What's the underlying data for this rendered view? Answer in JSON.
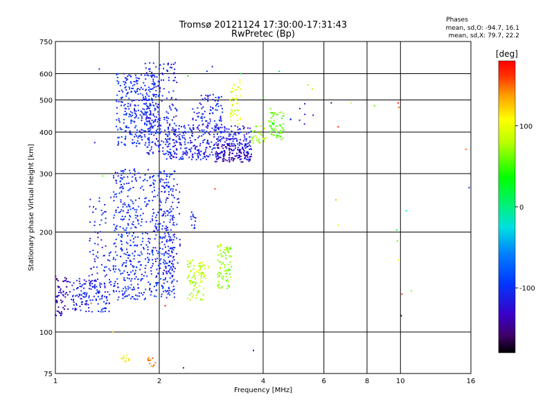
{
  "chart_data": {
    "type": "scatter",
    "title": "Tromsø 20121124 17:30:00-17:31:43",
    "subtitle": "RwPretec (Bp)",
    "xlabel": "Frequency [MHz]",
    "ylabel": "Stationary phase Virtual Height [km]",
    "x_scale": "log",
    "y_scale": "log",
    "xlim": [
      1,
      16
    ],
    "ylim": [
      75,
      750
    ],
    "x_ticks": [
      1,
      2,
      4,
      6,
      8,
      10,
      16
    ],
    "x_tick_labels": [
      "1",
      "2",
      "4",
      "6",
      "8",
      "10",
      "16"
    ],
    "y_ticks": [
      75,
      100,
      200,
      300,
      400,
      500,
      600,
      750
    ],
    "y_tick_labels": [
      "75",
      "100",
      "200",
      "300",
      "400",
      "500",
      "600",
      "750"
    ],
    "grid": true,
    "stats": {
      "heading": "Phases",
      "line1": "mean, sd,O:  -94.7, 16.1",
      "line2": "mean, sd,X:  79.7, 22.2"
    },
    "colorbar": {
      "unit": "[deg]",
      "range": [
        -180,
        180
      ],
      "ticks": [
        100,
        0,
        -100
      ],
      "tick_labels": [
        "100",
        "0",
        "-100"
      ]
    },
    "clusters": [
      {
        "f": [
          1.0,
          1.09
        ],
        "h": [
          112,
          148
        ],
        "phase": -135,
        "count": 60
      },
      {
        "f": [
          1.1,
          1.45
        ],
        "h": [
          115,
          145
        ],
        "phase": -112,
        "count": 140
      },
      {
        "f": [
          1.25,
          1.45
        ],
        "h": [
          140,
          255
        ],
        "phase": -108,
        "count": 70
      },
      {
        "f": [
          1.47,
          2.22
        ],
        "h": [
          125,
          310
        ],
        "phase": -102,
        "count": 620
      },
      {
        "f": [
          2.05,
          2.3
        ],
        "h": [
          140,
          280
        ],
        "phase": -115,
        "count": 80
      },
      {
        "f": [
          1.5,
          2.0
        ],
        "h": [
          360,
          600
        ],
        "phase": -102,
        "count": 330
      },
      {
        "f": [
          1.82,
          2.25
        ],
        "h": [
          340,
          650
        ],
        "phase": -110,
        "count": 200
      },
      {
        "f": [
          2.1,
          3.7
        ],
        "h": [
          330,
          420
        ],
        "phase": -112,
        "count": 380
      },
      {
        "f": [
          2.9,
          3.7
        ],
        "h": [
          325,
          370
        ],
        "phase": -140,
        "count": 90
      },
      {
        "f": [
          2.5,
          3.05
        ],
        "h": [
          400,
          520
        ],
        "phase": -108,
        "count": 90
      },
      {
        "f": [
          3.2,
          3.45
        ],
        "h": [
          420,
          580
        ],
        "phase": 90,
        "count": 40
      },
      {
        "f": [
          3.7,
          4.1
        ],
        "h": [
          370,
          420
        ],
        "phase": 72,
        "count": 30
      },
      {
        "f": [
          4.15,
          4.6
        ],
        "h": [
          380,
          460
        ],
        "phase": 58,
        "count": 60
      },
      {
        "f": [
          4.6,
          5.6
        ],
        "h": [
          420,
          490
        ],
        "phase": -120,
        "count": 8
      },
      {
        "f": [
          2.4,
          2.7
        ],
        "h": [
          125,
          165
        ],
        "phase": 78,
        "count": 70
      },
      {
        "f": [
          2.6,
          2.8
        ],
        "h": [
          140,
          165
        ],
        "phase": 95,
        "count": 20
      },
      {
        "f": [
          2.95,
          3.25
        ],
        "h": [
          135,
          185
        ],
        "phase": 68,
        "count": 80
      },
      {
        "f": [
          1.55,
          1.65
        ],
        "h": [
          80,
          86
        ],
        "phase": 112,
        "count": 12
      },
      {
        "f": [
          1.85,
          1.95
        ],
        "h": [
          78,
          84
        ],
        "phase": 145,
        "count": 12
      },
      {
        "f": [
          2.47,
          2.56
        ],
        "h": [
          205,
          230
        ],
        "phase": -105,
        "count": 15
      }
    ],
    "points": [
      {
        "f": 1.34,
        "h": 620,
        "phase": -100
      },
      {
        "f": 1.3,
        "h": 372,
        "phase": -112
      },
      {
        "f": 1.5,
        "h": 500,
        "phase": -90
      },
      {
        "f": 1.37,
        "h": 295,
        "phase": 60
      },
      {
        "f": 1.27,
        "h": 122,
        "phase": 150
      },
      {
        "f": 1.47,
        "h": 100,
        "phase": 120
      },
      {
        "f": 2.08,
        "h": 120,
        "phase": 170
      },
      {
        "f": 2.35,
        "h": 78,
        "phase": -150
      },
      {
        "f": 2.42,
        "h": 590,
        "phase": 30
      },
      {
        "f": 2.75,
        "h": 610,
        "phase": -100
      },
      {
        "f": 2.85,
        "h": 630,
        "phase": -120
      },
      {
        "f": 2.9,
        "h": 270,
        "phase": 160
      },
      {
        "f": 3.75,
        "h": 88,
        "phase": -140
      },
      {
        "f": 3.45,
        "h": 600,
        "phase": 20
      },
      {
        "f": 4.45,
        "h": 610,
        "phase": 10
      },
      {
        "f": 4.0,
        "h": 505,
        "phase": 40
      },
      {
        "f": 4.2,
        "h": 470,
        "phase": 60
      },
      {
        "f": 5.4,
        "h": 555,
        "phase": 70
      },
      {
        "f": 5.55,
        "h": 540,
        "phase": 80
      },
      {
        "f": 6.3,
        "h": 490,
        "phase": -160
      },
      {
        "f": 6.6,
        "h": 415,
        "phase": 170
      },
      {
        "f": 6.5,
        "h": 250,
        "phase": 130
      },
      {
        "f": 6.6,
        "h": 210,
        "phase": 110
      },
      {
        "f": 7.2,
        "h": 490,
        "phase": 80
      },
      {
        "f": 8.4,
        "h": 480,
        "phase": 50
      },
      {
        "f": 9.85,
        "h": 490,
        "phase": 170
      },
      {
        "f": 9.9,
        "h": 475,
        "phase": 150
      },
      {
        "f": 9.75,
        "h": 203,
        "phase": 20
      },
      {
        "f": 9.8,
        "h": 188,
        "phase": 60
      },
      {
        "f": 9.85,
        "h": 165,
        "phase": 110
      },
      {
        "f": 10.1,
        "h": 130,
        "phase": 160
      },
      {
        "f": 10.05,
        "h": 112,
        "phase": -175
      },
      {
        "f": 10.4,
        "h": 232,
        "phase": -10
      },
      {
        "f": 10.75,
        "h": 133,
        "phase": 60
      },
      {
        "f": 15.5,
        "h": 355,
        "phase": 150
      },
      {
        "f": 15.8,
        "h": 272,
        "phase": -100
      }
    ]
  }
}
